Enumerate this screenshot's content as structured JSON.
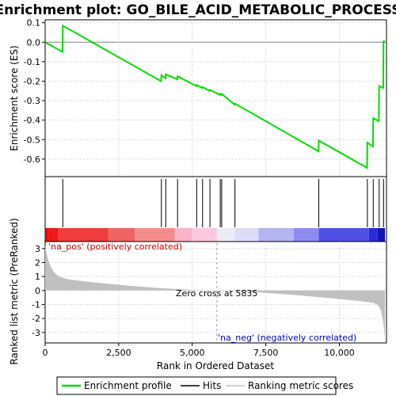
{
  "chart_data": {
    "type": "line",
    "title": "Enrichment plot: GO_BILE_ACID_METABOLIC_PROCESS",
    "xlabel": "Rank in Ordered Dataset",
    "es_ylabel": "Enrichment score (ES)",
    "metric_ylabel": "Ranked list metric (PreRanked)",
    "xlim": [
      0,
      11600
    ],
    "es_ylim": [
      -0.69,
      0.115
    ],
    "metric_ylim": [
      -3.75,
      3.5
    ],
    "x_ticks": [
      0,
      2500,
      5000,
      7500,
      10000
    ],
    "x_tick_labels": [
      "0",
      "2,500",
      "5,000",
      "7,500",
      "10,000"
    ],
    "es_ticks": [
      0.1,
      0.0,
      -0.1,
      -0.2,
      -0.3,
      -0.4,
      -0.5,
      -0.6
    ],
    "es_tick_labels": [
      "0.1",
      "0.0",
      "-0.1",
      "-0.2",
      "-0.3",
      "-0.4",
      "-0.5",
      "-0.6"
    ],
    "metric_ticks": [
      3,
      2,
      1,
      0,
      -1,
      -2,
      -3
    ],
    "metric_tick_labels": [
      "3",
      "2",
      "1",
      "0",
      "-1",
      "-2",
      "-3"
    ],
    "pos_label": "'na_pos' (positively correlated)",
    "neg_label": "'na_neg' (negatively correlated)",
    "zero_cross_label": "Zero cross at 5835",
    "zero_cross": 5835,
    "max_rank": 11550,
    "hits": [
      600,
      3950,
      4100,
      4500,
      5150,
      5350,
      5600,
      5950,
      6000,
      6450,
      9300,
      10950,
      11150,
      11350,
      11500
    ],
    "es_profile": {
      "x": [
        0,
        590,
        600,
        3940,
        3950,
        4090,
        4100,
        4490,
        4500,
        5140,
        5150,
        5340,
        5350,
        5590,
        5600,
        5940,
        5950,
        5990,
        6000,
        6440,
        6450,
        9290,
        9300,
        10940,
        10950,
        11140,
        11150,
        11340,
        11350,
        11490,
        11500,
        11550
      ],
      "y": [
        0.0,
        -0.05,
        0.085,
        -0.2,
        -0.17,
        -0.185,
        -0.165,
        -0.19,
        -0.175,
        -0.225,
        -0.22,
        -0.235,
        -0.23,
        -0.25,
        -0.245,
        -0.27,
        -0.265,
        -0.27,
        -0.265,
        -0.32,
        -0.315,
        -0.56,
        -0.505,
        -0.645,
        -0.515,
        -0.535,
        -0.39,
        -0.405,
        -0.225,
        -0.235,
        0.005,
        0.005
      ]
    },
    "legend": [
      {
        "label": "Enrichment profile",
        "color": "#00dd00"
      },
      {
        "label": "Hits",
        "color": "#000000"
      },
      {
        "label": "Ranking metric scores",
        "color": "#c0c0c0"
      }
    ],
    "colors": {
      "profile": "#00dd00",
      "hits": "#000000",
      "metric_fill": "#c0c0c0",
      "grid": "#d8d8d8",
      "zero_line": "#a0a0a0"
    },
    "heat_bands": [
      {
        "start": 0,
        "end": 100,
        "color": "#e60000"
      },
      {
        "start": 100,
        "end": 450,
        "color": "#f01818"
      },
      {
        "start": 450,
        "end": 2150,
        "color": "#f03c3c"
      },
      {
        "start": 2150,
        "end": 3050,
        "color": "#f06464"
      },
      {
        "start": 3050,
        "end": 4400,
        "color": "#f58c8c"
      },
      {
        "start": 4400,
        "end": 5000,
        "color": "#f8b4c8"
      },
      {
        "start": 5000,
        "end": 5835,
        "color": "#fcc8e0"
      },
      {
        "start": 5835,
        "end": 6450,
        "color": "#ececf8"
      },
      {
        "start": 6450,
        "end": 7250,
        "color": "#dcdcf8"
      },
      {
        "start": 7250,
        "end": 8450,
        "color": "#b4b4f0"
      },
      {
        "start": 8450,
        "end": 9300,
        "color": "#8c8cf0"
      },
      {
        "start": 9300,
        "end": 11000,
        "color": "#5050e6"
      },
      {
        "start": 11000,
        "end": 11300,
        "color": "#2a2ad8"
      },
      {
        "start": 11300,
        "end": 11550,
        "color": "#1414b4"
      }
    ]
  }
}
